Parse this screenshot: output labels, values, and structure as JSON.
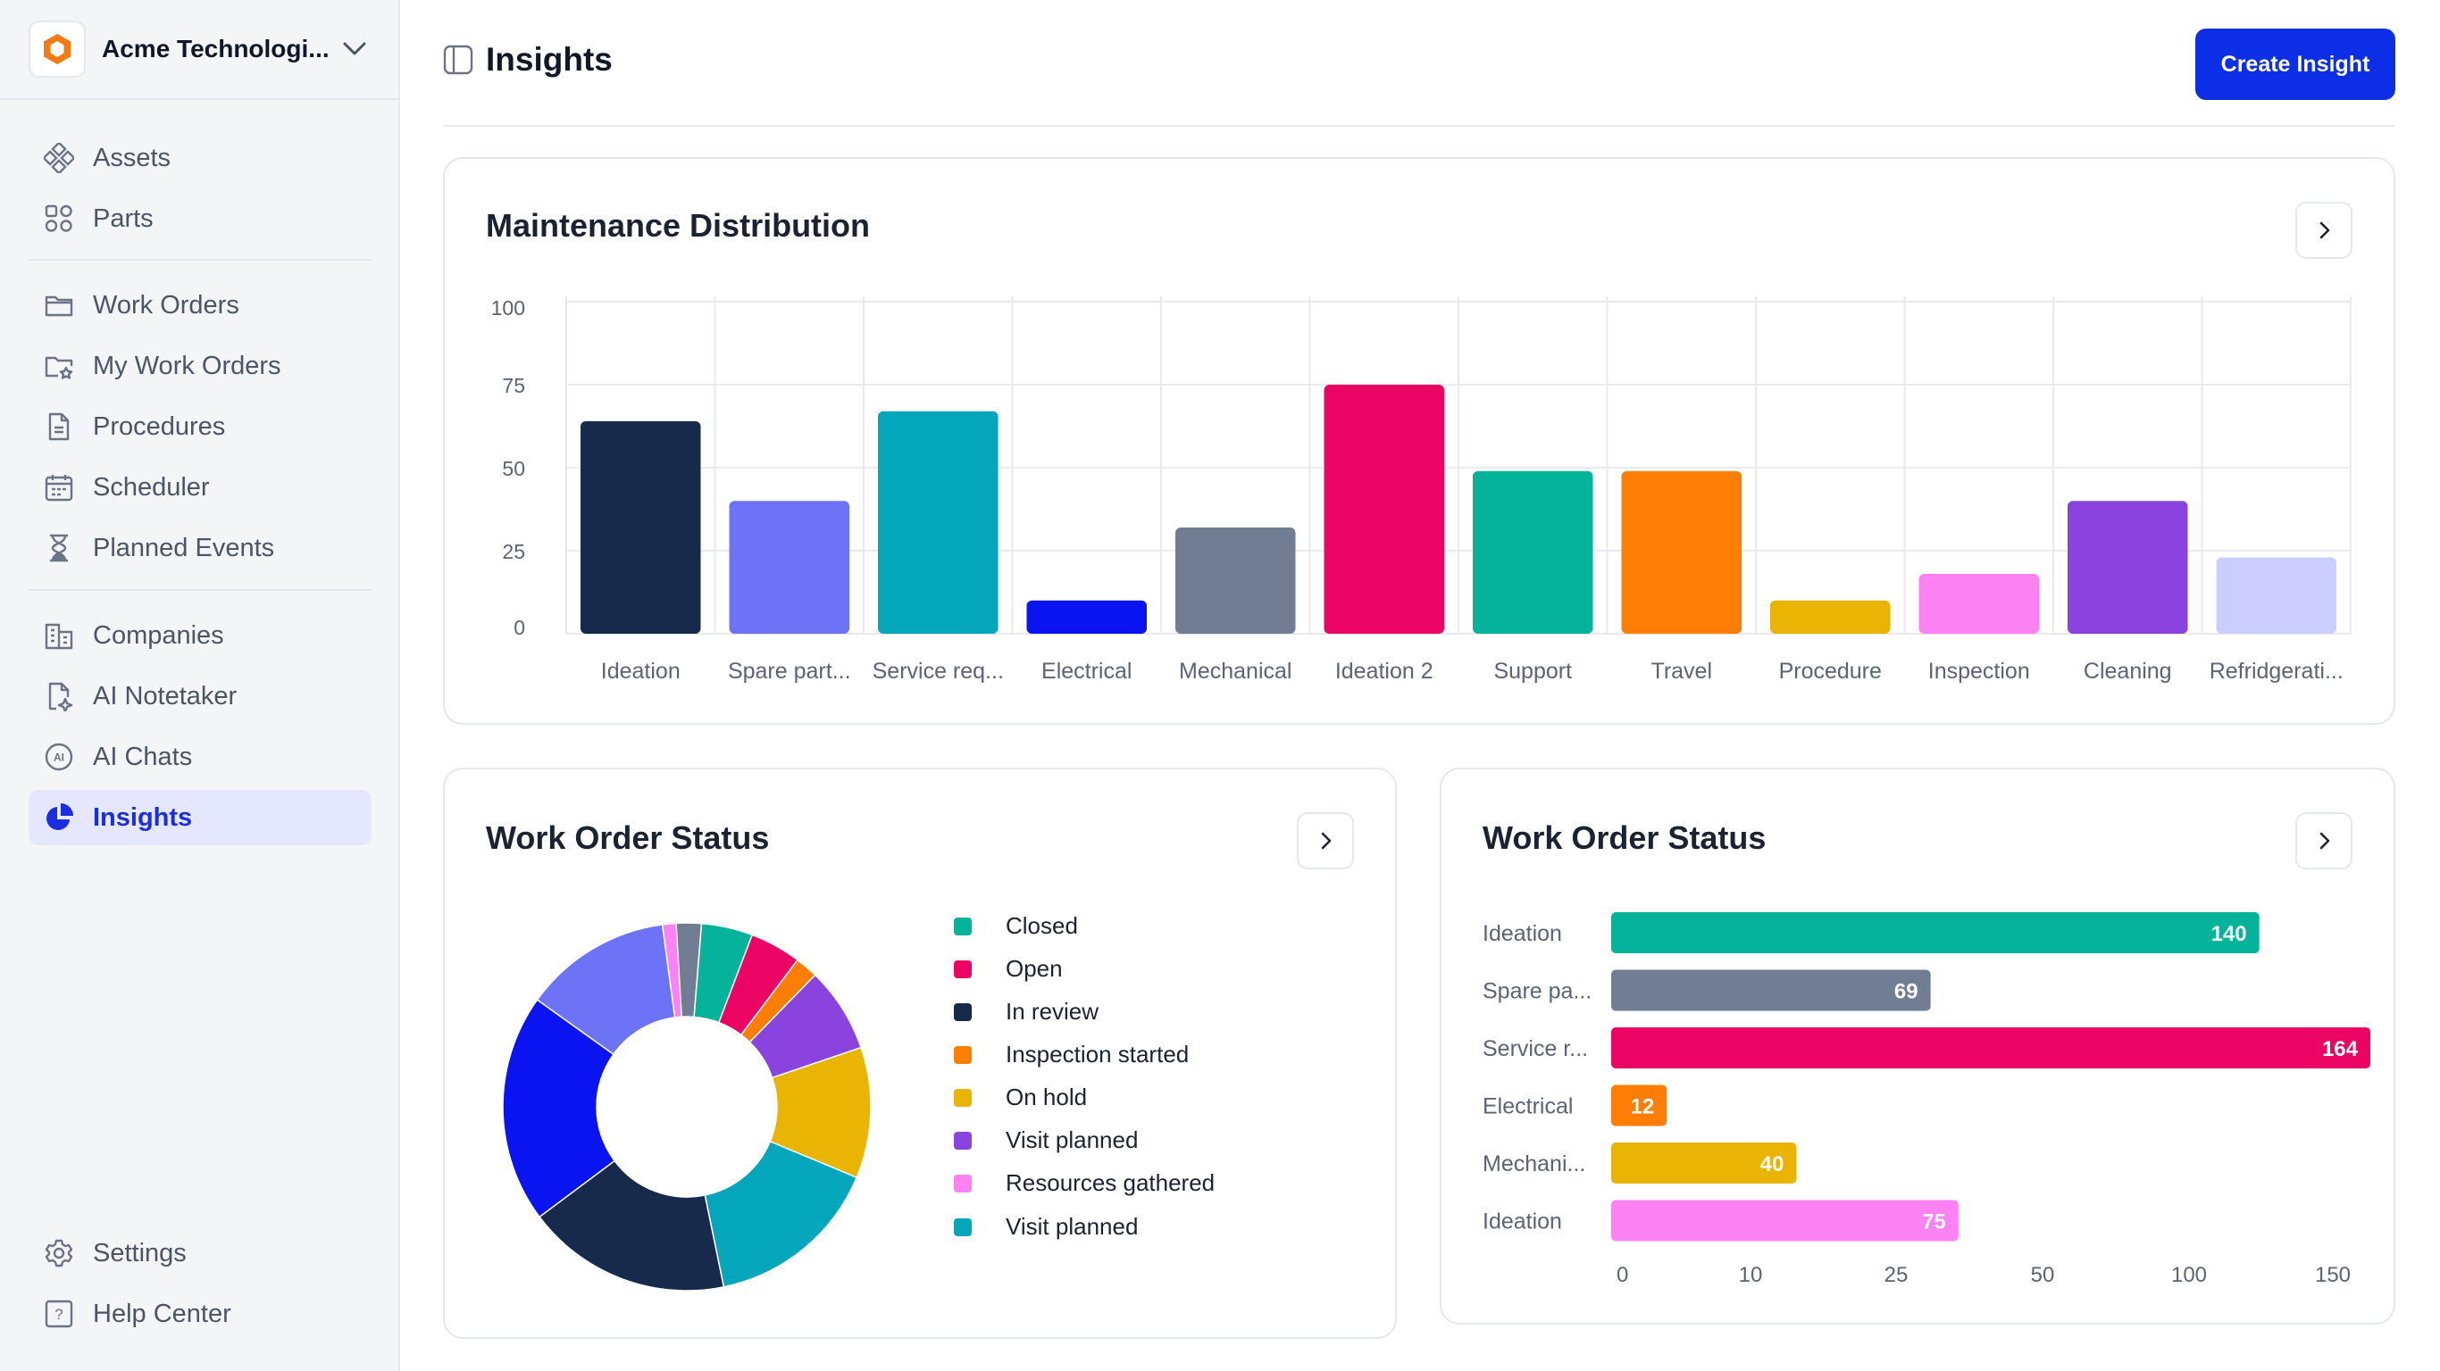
{
  "org": {
    "name": "Acme Technologi..."
  },
  "sidebar": {
    "items": [
      {
        "label": "Assets",
        "icon": "assets-icon"
      },
      {
        "label": "Parts",
        "icon": "parts-icon"
      },
      {
        "label": "Work Orders",
        "icon": "folder-icon"
      },
      {
        "label": "My Work Orders",
        "icon": "folder-star-icon"
      },
      {
        "label": "Procedures",
        "icon": "document-icon"
      },
      {
        "label": "Scheduler",
        "icon": "calendar-icon"
      },
      {
        "label": "Planned Events",
        "icon": "hourglass-icon"
      },
      {
        "label": "Companies",
        "icon": "building-icon"
      },
      {
        "label": "AI Notetaker",
        "icon": "ai-notetaker-icon"
      },
      {
        "label": "AI Chats",
        "icon": "ai-chat-icon"
      },
      {
        "label": "Insights",
        "icon": "pie-chart-icon",
        "active": true
      }
    ],
    "footer": [
      {
        "label": "Settings",
        "icon": "gear-icon"
      },
      {
        "label": "Help Center",
        "icon": "help-icon"
      }
    ]
  },
  "header": {
    "title": "Insights",
    "create_label": "Create Insight"
  },
  "colors": {
    "accent": "#0b2ee6",
    "active_bg": "#e5e7fe"
  },
  "maintenance": {
    "title": "Maintenance Distribution",
    "chart_data": {
      "type": "bar",
      "categories": [
        "Ideation",
        "Spare part...",
        "Service req...",
        "Electrical",
        "Mechanical",
        "Ideation 2",
        "Support",
        "Travel",
        "Procedure",
        "Inspection",
        "Cleaning",
        "Refridgerati..."
      ],
      "values": [
        64,
        40,
        67,
        10,
        32,
        75,
        49,
        49,
        10,
        18,
        40,
        23
      ],
      "colors": [
        "#172a4b",
        "#6c73f7",
        "#04a6bc",
        "#0a14f1",
        "#717d92",
        "#ec0464",
        "#04b39a",
        "#fd7d05",
        "#e9b404",
        "#fc82f4",
        "#8b43e0",
        "#c9cefe"
      ],
      "yticks": [
        0,
        25,
        50,
        75,
        100
      ],
      "ylim": [
        0,
        100
      ],
      "grid": true
    }
  },
  "status_pie": {
    "title": "Work Order Status",
    "chart_data": {
      "type": "pie",
      "labels": [
        "Closed",
        "Open",
        "In review",
        "Inspection started",
        "On hold",
        "Visit planned",
        "Resources gathered",
        "Visit planned"
      ],
      "legend_colors": [
        "#04b39a",
        "#ec0464",
        "#172a4b",
        "#fd7d05",
        "#e9b404",
        "#8b43e0",
        "#fc82f4",
        "#04a6bc"
      ],
      "slices": [
        {
          "color": "#6c73f7",
          "value": 13.0
        },
        {
          "color": "#fc82f4",
          "value": 1.2
        },
        {
          "color": "#717d92",
          "value": 2.2
        },
        {
          "color": "#04b39a",
          "value": 4.5
        },
        {
          "color": "#ec0464",
          "value": 4.5
        },
        {
          "color": "#fd7d05",
          "value": 2.0
        },
        {
          "color": "#8b43e0",
          "value": 7.5
        },
        {
          "color": "#e9b404",
          "value": 11.5
        },
        {
          "color": "#04a6bc",
          "value": 15.5
        },
        {
          "color": "#172a4b",
          "value": 18.0
        },
        {
          "color": "#0a14f1",
          "value": 20.1
        }
      ],
      "donut": true
    }
  },
  "status_bar": {
    "title": "Work Order Status",
    "chart_data": {
      "type": "bar",
      "orientation": "horizontal",
      "categories": [
        "Ideation",
        "Spare pa...",
        "Service r...",
        "Electrical",
        "Mechani...",
        "Ideation"
      ],
      "values": [
        140,
        69,
        164,
        12,
        40,
        75
      ],
      "colors": [
        "#04b39a",
        "#717d92",
        "#ec0464",
        "#fd7d05",
        "#e9b404",
        "#fc82f4"
      ],
      "xticks": [
        "0",
        "10",
        "25",
        "50",
        "100",
        "150"
      ]
    }
  }
}
